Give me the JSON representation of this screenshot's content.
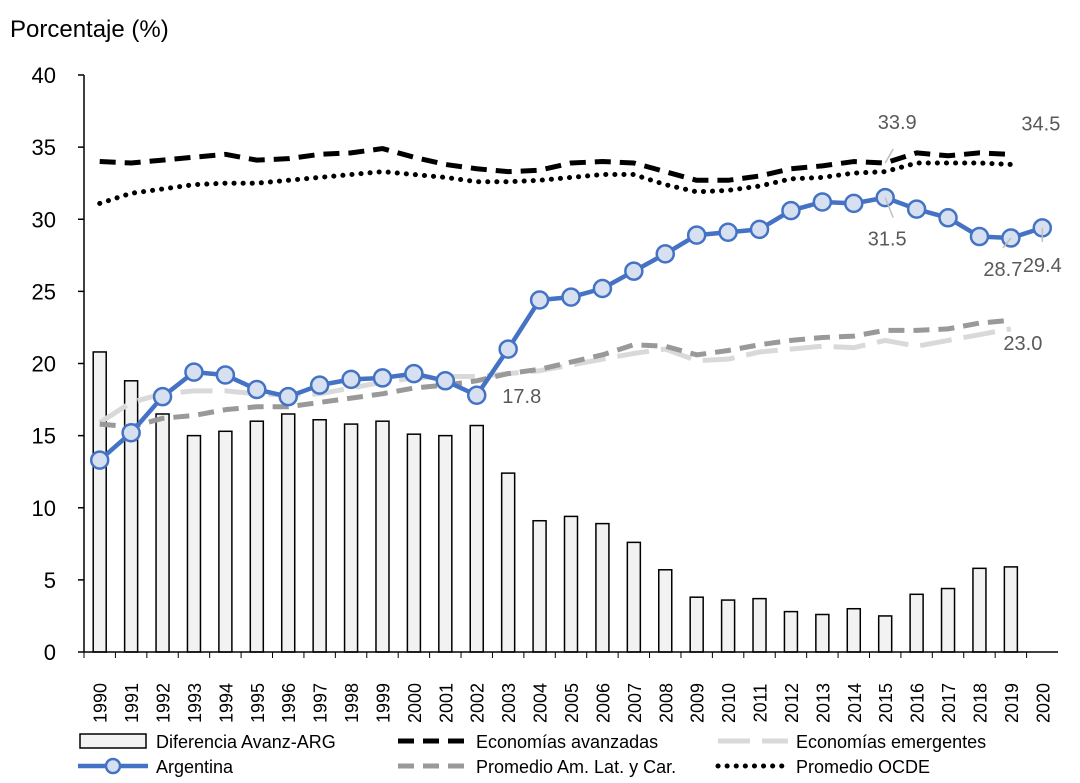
{
  "chart_data": {
    "type": "bar",
    "ylabel": "Porcentaje (%)",
    "ylim": [
      0,
      40
    ],
    "yticks": [
      0,
      5,
      10,
      15,
      20,
      25,
      30,
      35,
      40
    ],
    "grid": false,
    "legend_position": "bottom",
    "categories": [
      "1990",
      "1991",
      "1992",
      "1993",
      "1994",
      "1995",
      "1996",
      "1997",
      "1998",
      "1999",
      "2000",
      "2001",
      "2002",
      "2003",
      "2004",
      "2005",
      "2006",
      "2007",
      "2008",
      "2009",
      "2010",
      "2011",
      "2012",
      "2013",
      "2014",
      "2015",
      "2016",
      "2017",
      "2018",
      "2019",
      "2020"
    ],
    "series": [
      {
        "name": "Diferencia Avanz-ARG",
        "kind": "bar",
        "color": "#f2f2f2",
        "values": [
          20.8,
          18.8,
          16.5,
          15.0,
          15.3,
          16.0,
          16.5,
          16.1,
          15.8,
          16.0,
          15.1,
          15.0,
          15.7,
          12.4,
          9.1,
          9.4,
          8.9,
          7.6,
          5.7,
          3.8,
          3.6,
          3.7,
          2.8,
          2.6,
          3.0,
          2.5,
          4.0,
          4.4,
          5.8,
          5.9,
          null
        ]
      },
      {
        "name": "Argentina",
        "kind": "line-markers",
        "color": "#4472c4",
        "values": [
          13.3,
          15.2,
          17.7,
          19.4,
          19.2,
          18.2,
          17.7,
          18.5,
          18.9,
          19.0,
          19.3,
          18.8,
          17.8,
          21.0,
          24.4,
          24.6,
          25.2,
          26.4,
          27.6,
          28.9,
          29.1,
          29.3,
          30.6,
          31.2,
          31.1,
          31.5,
          30.7,
          30.1,
          28.8,
          28.7,
          29.4
        ]
      },
      {
        "name": "Economías avanzadas",
        "kind": "dash",
        "color": "#000000",
        "values": [
          34.0,
          33.9,
          34.1,
          34.3,
          34.5,
          34.1,
          34.2,
          34.5,
          34.6,
          34.9,
          34.3,
          33.8,
          33.5,
          33.3,
          33.4,
          33.9,
          34.0,
          33.9,
          33.3,
          32.7,
          32.7,
          33.0,
          33.5,
          33.7,
          34.0,
          33.9,
          34.6,
          34.4,
          34.6,
          34.5,
          null
        ]
      },
      {
        "name": "Promedio Am. Lat. y Car.",
        "kind": "dash",
        "color": "#999999",
        "values": [
          15.8,
          15.6,
          16.2,
          16.4,
          16.8,
          17.0,
          17.0,
          17.3,
          17.6,
          17.9,
          18.3,
          18.5,
          18.8,
          19.3,
          19.6,
          20.1,
          20.6,
          21.3,
          21.2,
          20.6,
          20.9,
          21.3,
          21.6,
          21.8,
          21.9,
          22.3,
          22.3,
          22.4,
          22.8,
          23.0,
          null
        ]
      },
      {
        "name": "Economías emergentes",
        "kind": "longdash",
        "color": "#d9d9d9",
        "values": [
          15.9,
          17.3,
          17.9,
          18.1,
          18.1,
          17.9,
          17.8,
          17.9,
          18.3,
          18.7,
          19.0,
          19.1,
          19.1,
          19.3,
          19.5,
          19.9,
          20.3,
          20.7,
          21.0,
          20.2,
          20.3,
          20.8,
          21.0,
          21.2,
          21.1,
          21.6,
          21.2,
          21.6,
          22.0,
          22.4,
          null
        ]
      },
      {
        "name": "Promedio OCDE",
        "kind": "dot",
        "color": "#000000",
        "values": [
          31.1,
          31.8,
          32.1,
          32.4,
          32.5,
          32.5,
          32.7,
          32.9,
          33.1,
          33.3,
          33.1,
          32.9,
          32.6,
          32.6,
          32.7,
          32.9,
          33.1,
          33.1,
          32.4,
          31.9,
          32.0,
          32.3,
          32.8,
          32.9,
          33.2,
          33.3,
          33.9,
          33.9,
          33.9,
          33.8,
          null
        ]
      }
    ],
    "annotations": [
      {
        "text": "33.9",
        "series": "Economías avanzadas",
        "x": "2015"
      },
      {
        "text": "34.5",
        "series": "Economías avanzadas",
        "x": "2019"
      },
      {
        "text": "31.5",
        "series": "Argentina",
        "x": "2015"
      },
      {
        "text": "28.7",
        "series": "Argentina",
        "x": "2019"
      },
      {
        "text": "29.4",
        "series": "Argentina",
        "x": "2020"
      },
      {
        "text": "23.0",
        "series": "Promedio Am. Lat. y Car.",
        "x": "2019"
      },
      {
        "text": "17.8",
        "series": "Argentina",
        "x": "2002"
      }
    ]
  }
}
